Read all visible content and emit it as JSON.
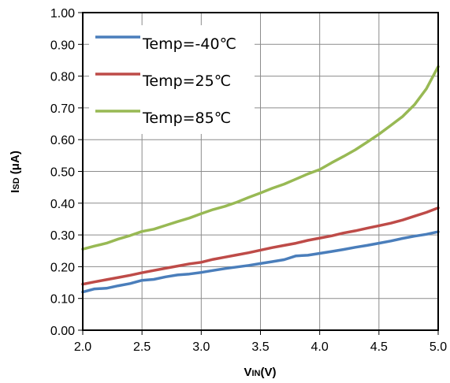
{
  "chart_data": {
    "type": "line",
    "title": "",
    "xlabel": {
      "main": "V",
      "sub": "IN",
      "tail": "(V)"
    },
    "ylabel": {
      "main": "I",
      "sub": "SD",
      "tail": " (μA)"
    },
    "xlim": [
      2.0,
      5.0
    ],
    "ylim": [
      0.0,
      1.0
    ],
    "x_ticks": [
      "2.0",
      "2.5",
      "3.0",
      "3.5",
      "4.0",
      "4.5",
      "5.0"
    ],
    "y_ticks": [
      "0.00",
      "0.10",
      "0.20",
      "0.30",
      "0.40",
      "0.50",
      "0.60",
      "0.70",
      "0.80",
      "0.90",
      "1.00"
    ],
    "grid": true,
    "legend_position": "top-left",
    "series": [
      {
        "name": "Temp=-40℃",
        "color": "#4a7ebb",
        "x": [
          2.0,
          2.1,
          2.2,
          2.3,
          2.4,
          2.5,
          2.6,
          2.7,
          2.8,
          2.9,
          3.0,
          3.1,
          3.2,
          3.3,
          3.4,
          3.5,
          3.6,
          3.7,
          3.8,
          3.9,
          4.0,
          4.1,
          4.2,
          4.3,
          4.4,
          4.5,
          4.6,
          4.7,
          4.8,
          4.9,
          5.0
        ],
        "y": [
          0.12,
          0.13,
          0.132,
          0.14,
          0.147,
          0.157,
          0.16,
          0.168,
          0.174,
          0.177,
          0.182,
          0.188,
          0.194,
          0.199,
          0.204,
          0.21,
          0.216,
          0.222,
          0.234,
          0.236,
          0.242,
          0.248,
          0.254,
          0.261,
          0.267,
          0.274,
          0.281,
          0.289,
          0.296,
          0.302,
          0.31
        ]
      },
      {
        "name": "Temp=25℃",
        "color": "#be4b48",
        "x": [
          2.0,
          2.1,
          2.2,
          2.3,
          2.4,
          2.5,
          2.6,
          2.7,
          2.8,
          2.9,
          3.0,
          3.1,
          3.2,
          3.3,
          3.4,
          3.5,
          3.6,
          3.7,
          3.8,
          3.9,
          4.0,
          4.1,
          4.2,
          4.3,
          4.4,
          4.5,
          4.6,
          4.7,
          4.8,
          4.9,
          5.0
        ],
        "y": [
          0.145,
          0.152,
          0.159,
          0.166,
          0.173,
          0.181,
          0.188,
          0.195,
          0.202,
          0.209,
          0.214,
          0.223,
          0.23,
          0.237,
          0.244,
          0.252,
          0.26,
          0.267,
          0.274,
          0.283,
          0.29,
          0.297,
          0.306,
          0.313,
          0.321,
          0.329,
          0.337,
          0.347,
          0.359,
          0.371,
          0.385
        ]
      },
      {
        "name": "Temp=85℃",
        "color": "#98b954",
        "x": [
          2.0,
          2.1,
          2.2,
          2.3,
          2.4,
          2.5,
          2.6,
          2.7,
          2.8,
          2.9,
          3.0,
          3.1,
          3.2,
          3.3,
          3.4,
          3.5,
          3.6,
          3.7,
          3.8,
          3.9,
          4.0,
          4.1,
          4.2,
          4.3,
          4.4,
          4.5,
          4.6,
          4.7,
          4.8,
          4.9,
          5.0
        ],
        "y": [
          0.255,
          0.265,
          0.274,
          0.287,
          0.298,
          0.311,
          0.318,
          0.33,
          0.342,
          0.353,
          0.367,
          0.38,
          0.39,
          0.403,
          0.418,
          0.432,
          0.447,
          0.46,
          0.476,
          0.492,
          0.506,
          0.527,
          0.547,
          0.568,
          0.592,
          0.617,
          0.645,
          0.673,
          0.71,
          0.76,
          0.83
        ]
      }
    ]
  }
}
